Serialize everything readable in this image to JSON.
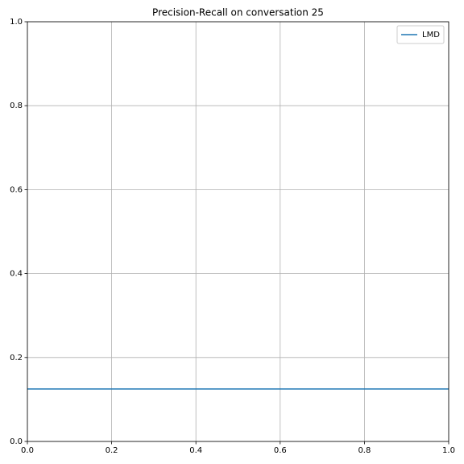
{
  "chart_data": {
    "type": "line",
    "title": "Precision-Recall on conversation 25",
    "x": [
      0,
      1
    ],
    "series": [
      {
        "name": "LMD",
        "color": "#1f77b4",
        "values": [
          0.125,
          0.125
        ]
      }
    ],
    "xlim": [
      0,
      1
    ],
    "ylim": [
      0,
      1
    ],
    "xticks": [
      {
        "value": 0,
        "label": "0.0"
      },
      0.2,
      0.4,
      0.6,
      0.8,
      {
        "value": 1,
        "label": "1.0"
      }
    ],
    "yticks": [
      {
        "value": 0,
        "label": "0.0"
      },
      0.2,
      0.4,
      0.6,
      0.8,
      {
        "value": 1,
        "label": "1.0"
      }
    ],
    "grid": true,
    "legend": "upper right"
  }
}
